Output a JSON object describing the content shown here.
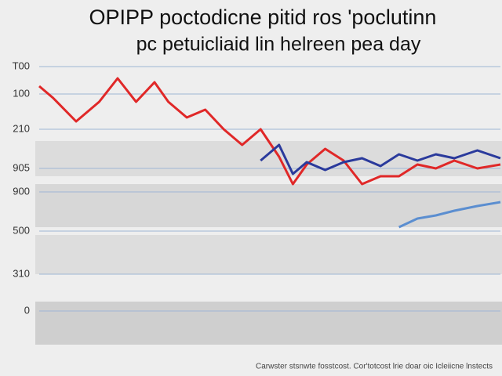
{
  "chart_data": {
    "type": "line",
    "title": "OPIPP poctodicne pitid ros 'poclutinn",
    "subtitle": "pc petuicliaid lin helreen pea day",
    "footnote": "Carwster stsnwte fosstcost. Cor'totcost lrie doar oic Icleiicne lnstects",
    "x": [
      0,
      3,
      8,
      13,
      17,
      21,
      25,
      28,
      32,
      36,
      40,
      44,
      48,
      52,
      55,
      58,
      62,
      66,
      70,
      74,
      78,
      82,
      86,
      90,
      95,
      100
    ],
    "xlim": [
      0,
      100
    ],
    "ylim": [
      0,
      312
    ],
    "yticks": [
      0,
      {
        "value": 47,
        "label": "310"
      },
      {
        "value": 102,
        "label": "500"
      },
      {
        "value": 152,
        "label": "900"
      },
      {
        "value": 182,
        "label": "905"
      },
      {
        "value": 232,
        "label": "210"
      },
      {
        "value": 277,
        "label": "100"
      },
      {
        "value": 312,
        "label": "T00"
      }
    ],
    "grid": true,
    "series": [
      {
        "name": "red",
        "color": "#e02828",
        "values": [
          287,
          272,
          242,
          267,
          297,
          267,
          292,
          267,
          247,
          257,
          232,
          212,
          232,
          197,
          162,
          187,
          207,
          192,
          162,
          172,
          172,
          187,
          182,
          192,
          182,
          187
        ]
      },
      {
        "name": "blue",
        "color": "#2a3a9c",
        "values": [
          null,
          null,
          null,
          null,
          null,
          null,
          null,
          null,
          null,
          null,
          null,
          null,
          192,
          212,
          175,
          190,
          180,
          190,
          195,
          185,
          200,
          192,
          200,
          195,
          205,
          195
        ]
      },
      {
        "name": "light-blue",
        "color": "#5b8ed0",
        "values": [
          null,
          null,
          null,
          null,
          null,
          null,
          null,
          null,
          null,
          null,
          null,
          null,
          null,
          null,
          null,
          null,
          null,
          null,
          null,
          null,
          107,
          118,
          122,
          128,
          134,
          139
        ]
      }
    ]
  }
}
